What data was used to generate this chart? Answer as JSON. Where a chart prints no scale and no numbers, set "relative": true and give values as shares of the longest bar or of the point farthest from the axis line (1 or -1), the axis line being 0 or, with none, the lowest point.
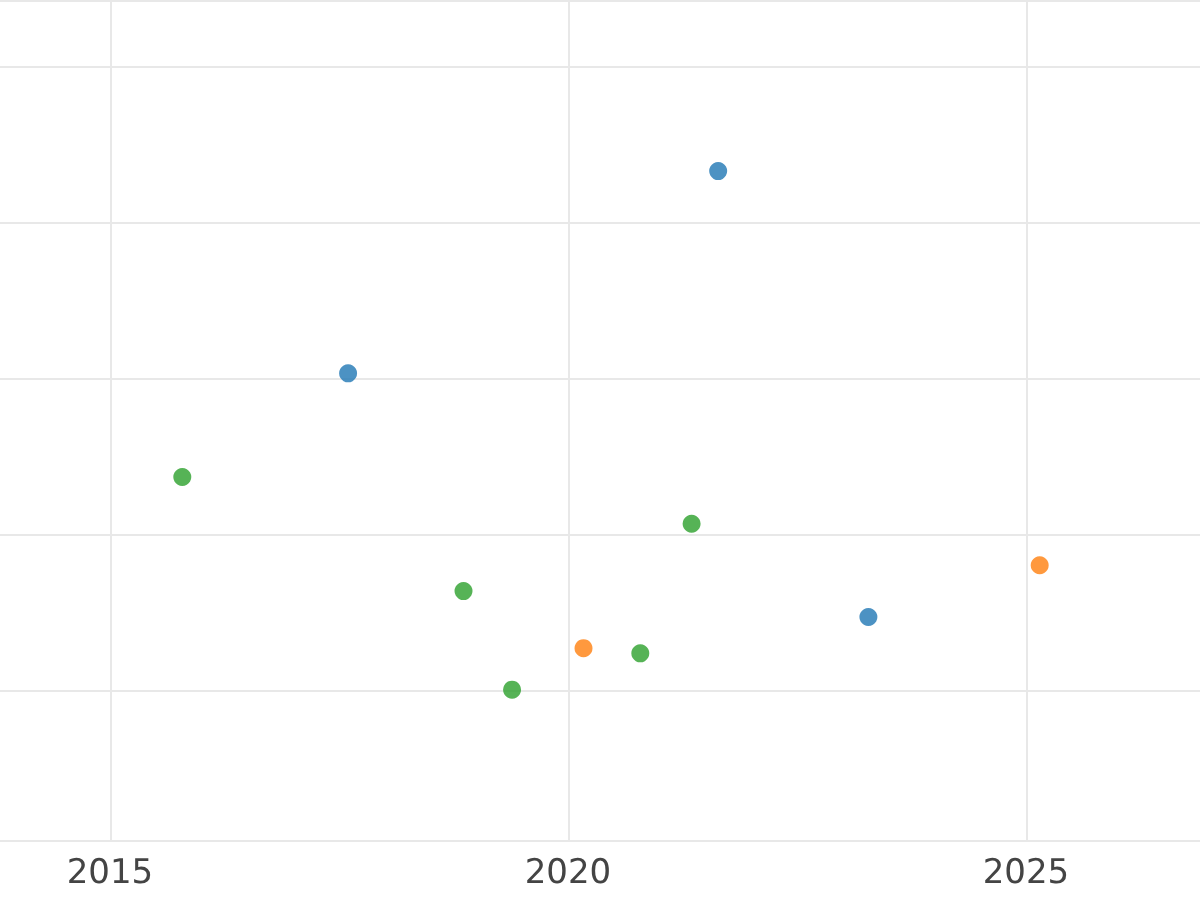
{
  "chart_data": {
    "type": "scatter",
    "relative": true,
    "xlim": [
      2013.8,
      2026.9
    ],
    "xticks": [
      2015,
      2020,
      2025
    ],
    "grid": true,
    "marker": "circle",
    "series": [
      {
        "color": "#1f77b4",
        "x": [
          2021.64,
          2017.6,
          2023.28
        ],
        "values": [
          1,
          0.61,
          0.14
        ]
      },
      {
        "color": "#ff7f0e",
        "x": [
          2020.17,
          2025.15
        ],
        "values": [
          0.08,
          0.24
        ]
      },
      {
        "color": "#2ca02c",
        "x": [
          2015.79,
          2018.86,
          2019.39,
          2020.79,
          2021.35
        ],
        "values": [
          0.41,
          0.19,
          0,
          0.07,
          0.32
        ]
      }
    ]
  }
}
